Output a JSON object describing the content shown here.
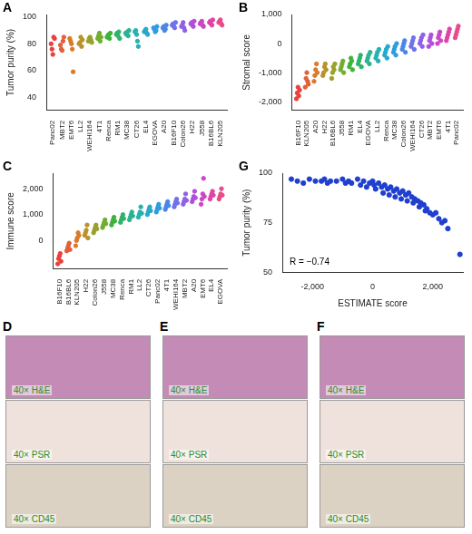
{
  "chart_data": [
    {
      "type": "strip",
      "title": "A",
      "y_label": "Tumor purity (%)",
      "marker": "circle",
      "grid": false,
      "categories": [
        "Panc02",
        "MBT2",
        "EMT6",
        "LL2",
        "WEHI164",
        "4T1",
        "Renca",
        "RM1",
        "MC38",
        "CT26",
        "EL4",
        "EGOVA",
        "A20",
        "B16F10",
        "Colon26",
        "H22",
        "J558",
        "B16BL6",
        "KLN205"
      ],
      "colors": [
        "#e8413c",
        "#e0603a",
        "#d97b2b",
        "#b8922a",
        "#9aa12a",
        "#72ad2f",
        "#3fb23b",
        "#2fb36a",
        "#2bb393",
        "#27b1b0",
        "#27a9c9",
        "#2f9ce0",
        "#4a86e8",
        "#6f72ea",
        "#8f60e6",
        "#b04fd9",
        "#cc47c6",
        "#e044a8",
        "#ea4a8a"
      ],
      "values": [
        [
          80,
          76,
          72,
          85,
          84
        ],
        [
          79,
          76,
          75,
          82,
          85
        ],
        [
          84,
          82,
          80,
          76,
          59
        ],
        [
          80,
          81,
          85,
          78,
          83
        ],
        [
          82,
          84,
          85,
          83,
          81
        ],
        [
          84,
          86,
          88,
          82,
          85
        ],
        [
          85,
          86,
          87,
          84,
          88
        ],
        [
          87,
          88,
          86,
          89,
          84
        ],
        [
          88,
          87,
          89,
          86,
          90
        ],
        [
          89,
          90,
          87,
          82,
          78
        ],
        [
          89,
          90,
          91,
          88,
          87
        ],
        [
          92,
          91,
          89,
          90,
          93
        ],
        [
          92,
          93,
          90,
          91,
          94
        ],
        [
          94,
          95,
          93,
          92,
          96
        ],
        [
          93,
          94,
          96,
          92,
          90
        ],
        [
          95,
          96,
          94,
          93,
          97
        ],
        [
          95,
          96,
          97,
          94,
          93
        ],
        [
          96,
          97,
          95,
          94,
          98
        ],
        [
          96,
          97,
          98,
          95,
          94
        ]
      ],
      "ylim": [
        30,
        102
      ],
      "yticks": [
        40,
        60,
        80,
        100
      ]
    },
    {
      "type": "strip",
      "title": "B",
      "y_label": "Stromal score",
      "marker": "circle",
      "grid": false,
      "categories": [
        "B16F10",
        "KLN205",
        "A20",
        "H22",
        "B16BL6",
        "J558",
        "RM1",
        "EL4",
        "EGOVA",
        "LL2",
        "Renca",
        "MC38",
        "Colon26",
        "WEHI164",
        "CT26",
        "MBT2",
        "EMT6",
        "4T1",
        "Panc02"
      ],
      "colors": [
        "#e8413c",
        "#e0603a",
        "#d97b2b",
        "#b8922a",
        "#9aa12a",
        "#72ad2f",
        "#3fb23b",
        "#2fb36a",
        "#2bb393",
        "#27b1b0",
        "#27a9c9",
        "#2f9ce0",
        "#4a86e8",
        "#6f72ea",
        "#8f60e6",
        "#b04fd9",
        "#cc47c6",
        "#e044a8",
        "#ea4a8a"
      ],
      "values": [
        [
          -1900,
          -1700,
          -1500,
          -1800,
          -1600
        ],
        [
          -1500,
          -1200,
          -1000,
          -1300,
          -1400
        ],
        [
          -1300,
          -1100,
          -900,
          -700,
          -1000
        ],
        [
          -1100,
          -1000,
          -800,
          -700,
          -900
        ],
        [
          -1200,
          -1000,
          -800,
          -900,
          -700
        ],
        [
          -900,
          -800,
          -700,
          -600,
          -1000
        ],
        [
          -800,
          -700,
          -500,
          -600,
          -900
        ],
        [
          -700,
          -600,
          -500,
          -400,
          -800
        ],
        [
          -600,
          -500,
          -400,
          -700,
          -300
        ],
        [
          -500,
          -400,
          -300,
          -600,
          -200
        ],
        [
          -400,
          -300,
          -200,
          -500,
          -100
        ],
        [
          -300,
          -200,
          -100,
          -400,
          0
        ],
        [
          -200,
          -100,
          0,
          100,
          -300
        ],
        [
          -100,
          0,
          100,
          200,
          -200
        ],
        [
          0,
          100,
          200,
          -100,
          300
        ],
        [
          -100,
          100,
          200,
          300,
          0
        ],
        [
          0,
          200,
          300,
          400,
          100
        ],
        [
          100,
          200,
          300,
          400,
          500
        ],
        [
          200,
          300,
          400,
          500,
          600
        ]
      ],
      "ylim": [
        -2300,
        1000
      ],
      "yticks": [
        {
          "value": -2000,
          "label": "-2,000"
        },
        {
          "value": -1000,
          "label": "-1,000"
        },
        0,
        {
          "value": 1000,
          "label": "1,000"
        }
      ]
    },
    {
      "type": "strip",
      "title": "C",
      "y_label": "Immune score",
      "marker": "circle",
      "grid": false,
      "categories": [
        "B16F10",
        "B16BL6",
        "KLN205",
        "H22",
        "Colon26",
        "J558",
        "MC38",
        "Renca",
        "RM1",
        "LL2",
        "CT26",
        "Panc02",
        "4T1",
        "WEHI164",
        "MBT2",
        "A20",
        "EMT6",
        "EL4",
        "EGOVA"
      ],
      "colors": [
        "#e8413c",
        "#e0603a",
        "#d97b2b",
        "#b8922a",
        "#9aa12a",
        "#72ad2f",
        "#3fb23b",
        "#2fb36a",
        "#2bb393",
        "#27b1b0",
        "#27a9c9",
        "#2f9ce0",
        "#4a86e8",
        "#6f72ea",
        "#8f60e6",
        "#b04fd9",
        "#cc47c6",
        "#e044a8",
        "#ea4a8a"
      ],
      "values": [
        [
          -900,
          -700,
          -600,
          -500,
          -800
        ],
        [
          -400,
          -300,
          -200,
          -100,
          -350
        ],
        [
          -200,
          0,
          100,
          300,
          200
        ],
        [
          200,
          300,
          400,
          600,
          100
        ],
        [
          300,
          400,
          500,
          600,
          450
        ],
        [
          500,
          600,
          700,
          800,
          650
        ],
        [
          600,
          700,
          800,
          900,
          750
        ],
        [
          700,
          800,
          900,
          1000,
          850
        ],
        [
          800,
          900,
          1000,
          1100,
          950
        ],
        [
          900,
          1000,
          1100,
          1300,
          1050
        ],
        [
          1000,
          1100,
          1200,
          1300,
          1150
        ],
        [
          1100,
          1200,
          1300,
          1400,
          1250
        ],
        [
          1200,
          1300,
          1400,
          1500,
          1350
        ],
        [
          1300,
          1400,
          1500,
          1600,
          1450
        ],
        [
          1400,
          1500,
          1600,
          1800,
          1550
        ],
        [
          1500,
          1600,
          1700,
          1900,
          1650
        ],
        [
          1400,
          1600,
          1800,
          2400,
          1700
        ],
        [
          1600,
          1700,
          1800,
          1900,
          1750
        ],
        [
          1600,
          1700,
          1800,
          2000,
          1750
        ]
      ],
      "ylim": [
        -1100,
        2600
      ],
      "yticks": [
        0,
        {
          "value": 1000,
          "label": "1,000"
        },
        {
          "value": 2000,
          "label": "2,000"
        }
      ]
    },
    {
      "type": "scatter",
      "title": "G",
      "x_label": "ESTIMATE score",
      "y_label": "Tumor purity (%)",
      "marker": "circle",
      "grid": false,
      "color": "#1f3fd0",
      "annotation": "R = −0.74",
      "x": [
        -2700,
        -2500,
        -2300,
        -2100,
        -1900,
        -1700,
        -1600,
        -1500,
        -1400,
        -1200,
        -1000,
        -900,
        -800,
        -700,
        -500,
        -400,
        -300,
        -200,
        -100,
        0,
        50,
        100,
        200,
        300,
        350,
        400,
        500,
        550,
        600,
        700,
        750,
        800,
        900,
        950,
        1000,
        1100,
        1150,
        1200,
        1300,
        1350,
        1400,
        1500,
        1550,
        1600,
        1700,
        1750,
        1800,
        1900,
        2000,
        2100,
        2200,
        2300,
        2400,
        2500,
        2900
      ],
      "values": [
        97,
        96,
        95,
        97,
        96,
        96,
        97,
        95,
        96,
        96,
        97,
        95,
        96,
        95,
        97,
        94,
        96,
        93,
        95,
        96,
        94,
        92,
        95,
        93,
        90,
        94,
        92,
        89,
        93,
        91,
        88,
        92,
        90,
        87,
        91,
        89,
        86,
        90,
        88,
        85,
        87,
        86,
        83,
        85,
        84,
        81,
        82,
        80,
        79,
        80,
        77,
        75,
        76,
        72,
        59
      ],
      "xlim": [
        -3000,
        3000
      ],
      "xticks": [
        {
          "value": -2000,
          "label": "-2,000"
        },
        0,
        {
          "value": 2000,
          "label": "2,000"
        }
      ],
      "ylim": [
        50,
        100
      ],
      "yticks": [
        50,
        75,
        100
      ]
    }
  ],
  "image_panels": [
    {
      "title": "D",
      "captions": [
        "40× H&E",
        "40× PSR",
        "40× CD45"
      ]
    },
    {
      "title": "E",
      "captions": [
        "40× H&E",
        "40× PSR",
        "40× CD45"
      ]
    },
    {
      "title": "F",
      "captions": [
        "40× H&E",
        "40× PSR",
        "40× CD45"
      ]
    }
  ]
}
